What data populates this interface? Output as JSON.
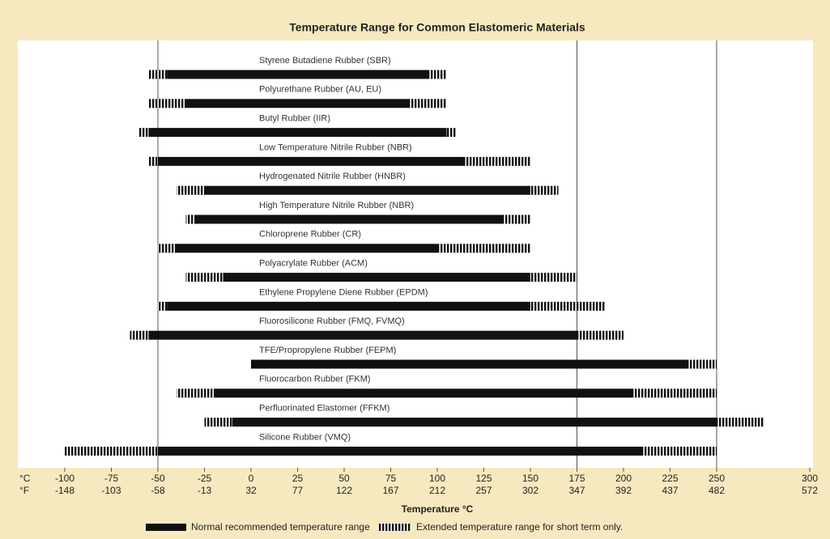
{
  "chart_data": {
    "type": "range_bar",
    "title": "Temperature Range for Common Elastomeric Materials",
    "categories": [
      "Styrene Butadiene Rubber (SBR)",
      "Polyurethane Rubber (AU, EU)",
      "Butyl Rubber (IIR)",
      "Low Temperature Nitrile Rubber (NBR)",
      "Hydrogenated Nitrile Rubber (HNBR)",
      "High Temperature Nitrile Rubber (NBR)",
      "Chloroprene Rubber (CR)",
      "Polyacrylate Rubber (ACM)",
      "Ethylene Propylene Diene Rubber (EPDM)",
      "Fluorosilicone Rubber (FMQ, FVMQ)",
      "TFE/Propropylene Rubber (FEPM)",
      "Fluorocarbon Rubber (FKM)",
      "Perfluorinated Elastomer (FFKM)",
      "Silicone Rubber (VMQ)"
    ],
    "extended_low": [
      -55,
      -55,
      -60,
      -55,
      -40,
      -35,
      -50,
      -35,
      -50,
      -65,
      0,
      -40,
      -25,
      -100
    ],
    "normal_low": [
      -45,
      -35,
      -55,
      -50,
      -25,
      -30,
      -40,
      -15,
      -45,
      -55,
      0,
      -20,
      -10,
      -50
    ],
    "normal_high": [
      95,
      85,
      105,
      115,
      150,
      135,
      100,
      150,
      150,
      175,
      235,
      205,
      250,
      210
    ],
    "extended_high": [
      105,
      105,
      110,
      150,
      165,
      150,
      150,
      175,
      190,
      200,
      250,
      250,
      275,
      250
    ],
    "xlim": [
      -100,
      300
    ],
    "xticks": [
      -100,
      -75,
      -50,
      -25,
      0,
      25,
      50,
      75,
      100,
      125,
      150,
      175,
      200,
      225,
      250,
      300
    ],
    "fahrenheit_ticks": [
      -148,
      -103,
      -58,
      -13,
      32,
      77,
      122,
      167,
      212,
      257,
      302,
      347,
      392,
      437,
      482,
      572
    ],
    "celsius_unit": "°C",
    "fahrenheit_unit": "°F",
    "grid_lines": [
      -50,
      175,
      250
    ],
    "xlabel": "Temperature °C",
    "legend": {
      "normal": "Normal recommended temperature range",
      "extended": "Extended temperature range for short term only."
    },
    "color": "#111111"
  }
}
